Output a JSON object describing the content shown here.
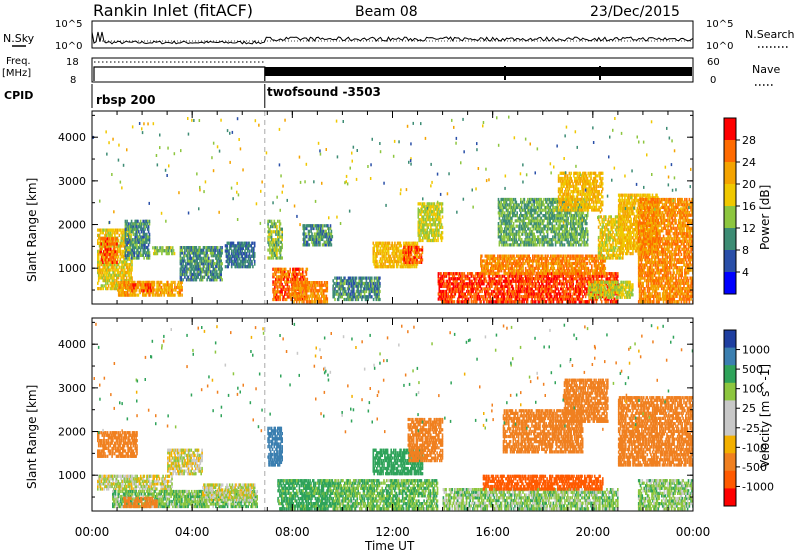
{
  "header": {
    "station": "Rankin Inlet (fitACF)",
    "beam": "Beam 08",
    "date": "23/Dec/2015"
  },
  "summary_panels": {
    "nsky_label": "N.Sky",
    "nsearch_label": "N.Search",
    "noise_ticks": [
      "10^5",
      "10^0"
    ],
    "freq_label": "Freq.",
    "freq_unit": "[MHz]",
    "freq_ticks": [
      "18",
      "8"
    ],
    "nave_label": "Nave",
    "nave_ticks": [
      "60",
      "0"
    ],
    "cpid_label": "CPID",
    "cpid_segments": [
      {
        "name": "rbsp 200",
        "start_hour": 0,
        "end_hour": 6.9
      },
      {
        "name": "twofsound -3503",
        "start_hour": 6.9,
        "end_hour": 24
      }
    ]
  },
  "x_axis": {
    "label": "Time UT",
    "tick_labels": [
      "00:00",
      "04:00",
      "08:00",
      "12:00",
      "16:00",
      "20:00",
      "00:00"
    ],
    "tick_hours": [
      0,
      4,
      8,
      12,
      16,
      20,
      24
    ],
    "range_hours": [
      0,
      24
    ],
    "mode_change_hour": 6.9
  },
  "colors": {
    "power_scale": [
      "#0000ff",
      "#2a4fa8",
      "#3d8c74",
      "#8dc63f",
      "#f0c800",
      "#f4a300",
      "#ff6a00",
      "#ff0000"
    ],
    "velocity_scale": [
      "#ff0000",
      "#ff5a00",
      "#f08020",
      "#f3b000",
      "#c8c8c8",
      "#c8c8c8",
      "#8dc63f",
      "#2fa35a",
      "#3b7fb0",
      "#1f3fa0"
    ]
  },
  "chart_data": [
    {
      "type": "heatmap",
      "name": "Power",
      "ylabel": "Slant Range [km]",
      "ylim": [
        180,
        4600
      ],
      "y_ticks": [
        1000,
        2000,
        3000,
        4000
      ],
      "colorbar": {
        "label": "Power [dB]",
        "range": [
          0,
          32
        ],
        "tick_values": [
          4,
          8,
          12,
          16,
          20,
          24,
          28
        ],
        "tick_labels": [
          "4",
          "8",
          "12",
          "16",
          "20",
          "24",
          "28"
        ]
      },
      "regions": [
        {
          "t0": 0.2,
          "t1": 1.6,
          "r0": 500,
          "r1": 1900,
          "v": 18
        },
        {
          "t0": 0.3,
          "t1": 1.0,
          "r0": 1100,
          "r1": 1700,
          "v": 26
        },
        {
          "t0": 1.0,
          "t1": 3.6,
          "r0": 350,
          "r1": 700,
          "v": 22
        },
        {
          "t0": 1.5,
          "t1": 2.4,
          "r0": 450,
          "r1": 650,
          "v": 26
        },
        {
          "t0": 1.3,
          "t1": 2.3,
          "r0": 1200,
          "r1": 2100,
          "v": 10
        },
        {
          "t0": 2.4,
          "t1": 3.3,
          "r0": 1300,
          "r1": 1500,
          "v": 14
        },
        {
          "t0": 3.5,
          "t1": 5.2,
          "r0": 700,
          "r1": 1500,
          "v": 10
        },
        {
          "t0": 5.3,
          "t1": 6.5,
          "r0": 1000,
          "r1": 1600,
          "v": 8
        },
        {
          "t0": 7.0,
          "t1": 7.6,
          "r0": 1200,
          "r1": 2100,
          "v": 14
        },
        {
          "t0": 7.2,
          "t1": 8.6,
          "r0": 250,
          "r1": 1000,
          "v": 26
        },
        {
          "t0": 8.0,
          "t1": 9.4,
          "r0": 200,
          "r1": 700,
          "v": 24
        },
        {
          "t0": 8.4,
          "t1": 9.6,
          "r0": 1500,
          "r1": 2000,
          "v": 10
        },
        {
          "t0": 9.6,
          "t1": 11.5,
          "r0": 250,
          "r1": 800,
          "v": 10
        },
        {
          "t0": 11.2,
          "t1": 13.0,
          "r0": 1000,
          "r1": 1600,
          "v": 20
        },
        {
          "t0": 12.4,
          "t1": 13.2,
          "r0": 1100,
          "r1": 1500,
          "v": 27
        },
        {
          "t0": 13.0,
          "t1": 14.0,
          "r0": 1600,
          "r1": 2500,
          "v": 16
        },
        {
          "t0": 13.8,
          "t1": 21.0,
          "r0": 200,
          "r1": 900,
          "v": 28
        },
        {
          "t0": 15.5,
          "t1": 20.5,
          "r0": 850,
          "r1": 1300,
          "v": 24
        },
        {
          "t0": 16.2,
          "t1": 19.8,
          "r0": 1500,
          "r1": 2600,
          "v": 12
        },
        {
          "t0": 18.6,
          "t1": 20.4,
          "r0": 2300,
          "r1": 3200,
          "v": 20
        },
        {
          "t0": 20.2,
          "t1": 21.2,
          "r0": 1200,
          "r1": 2200,
          "v": 18
        },
        {
          "t0": 21.0,
          "t1": 22.6,
          "r0": 1300,
          "r1": 2700,
          "v": 20
        },
        {
          "t0": 21.8,
          "t1": 24.0,
          "r0": 200,
          "r1": 2600,
          "v": 24
        },
        {
          "t0": 19.8,
          "t1": 21.6,
          "r0": 300,
          "r1": 700,
          "v": 16
        }
      ]
    },
    {
      "type": "heatmap",
      "name": "Velocity",
      "ylabel": "Slant Range [km]",
      "ylim": [
        180,
        4600
      ],
      "y_ticks": [
        1000,
        2000,
        3000,
        4000
      ],
      "colorbar": {
        "label": "Velocity [m s^-1]",
        "tick_labels": [
          "1000",
          "500",
          "100",
          "25",
          "-25",
          "-100",
          "-500",
          "-1000"
        ]
      },
      "regions": [
        {
          "t0": 0.2,
          "t1": 1.8,
          "r0": 1400,
          "r1": 2000,
          "v": -300
        },
        {
          "t0": 0.2,
          "t1": 3.2,
          "r0": 650,
          "r1": 1000,
          "v": 0
        },
        {
          "t0": 0.8,
          "t1": 6.6,
          "r0": 250,
          "r1": 650,
          "v": 80
        },
        {
          "t0": 1.2,
          "t1": 2.6,
          "r0": 250,
          "r1": 500,
          "v": -200
        },
        {
          "t0": 3.0,
          "t1": 4.4,
          "r0": 1000,
          "r1": 1600,
          "v": 0
        },
        {
          "t0": 4.4,
          "t1": 6.5,
          "r0": 400,
          "r1": 800,
          "v": 10
        },
        {
          "t0": 7.0,
          "t1": 7.6,
          "r0": 1200,
          "r1": 2100,
          "v": 600
        },
        {
          "t0": 7.4,
          "t1": 9.6,
          "r0": 200,
          "r1": 900,
          "v": 150
        },
        {
          "t0": 9.6,
          "t1": 13.8,
          "r0": 200,
          "r1": 900,
          "v": 90
        },
        {
          "t0": 11.2,
          "t1": 13.2,
          "r0": 1000,
          "r1": 1600,
          "v": 200
        },
        {
          "t0": 12.6,
          "t1": 14.0,
          "r0": 1300,
          "r1": 2300,
          "v": -200
        },
        {
          "t0": 14.0,
          "t1": 21.0,
          "r0": 200,
          "r1": 700,
          "v": 60
        },
        {
          "t0": 15.6,
          "t1": 20.4,
          "r0": 650,
          "r1": 1000,
          "v": -700
        },
        {
          "t0": 16.4,
          "t1": 19.6,
          "r0": 1500,
          "r1": 2500,
          "v": -200
        },
        {
          "t0": 18.8,
          "t1": 20.6,
          "r0": 2200,
          "r1": 3200,
          "v": -300
        },
        {
          "t0": 21.0,
          "t1": 24.0,
          "r0": 1200,
          "r1": 2800,
          "v": -300
        },
        {
          "t0": 21.8,
          "t1": 24.0,
          "r0": 200,
          "r1": 900,
          "v": 60
        }
      ]
    }
  ]
}
